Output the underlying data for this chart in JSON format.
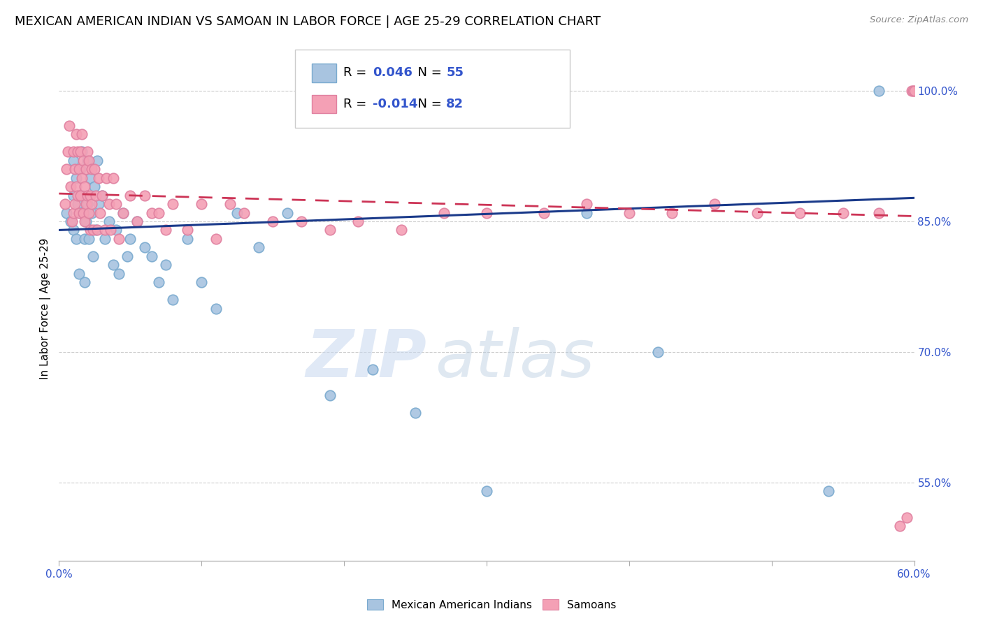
{
  "title": "MEXICAN AMERICAN INDIAN VS SAMOAN IN LABOR FORCE | AGE 25-29 CORRELATION CHART",
  "source": "Source: ZipAtlas.com",
  "ylabel": "In Labor Force | Age 25-29",
  "xlim": [
    0.0,
    0.6
  ],
  "ylim": [
    0.46,
    1.04
  ],
  "yticks": [
    0.55,
    0.7,
    0.85,
    1.0
  ],
  "ytick_labels": [
    "55.0%",
    "70.0%",
    "85.0%",
    "100.0%"
  ],
  "xticks": [
    0.0,
    0.1,
    0.2,
    0.3,
    0.4,
    0.5,
    0.6
  ],
  "xtick_labels": [
    "0.0%",
    "",
    "",
    "",
    "",
    "",
    "60.0%"
  ],
  "blue_R": 0.046,
  "blue_N": 55,
  "pink_R": -0.014,
  "pink_N": 82,
  "blue_color": "#a8c4e0",
  "pink_color": "#f4a0b5",
  "blue_edge_color": "#7aaacf",
  "pink_edge_color": "#e080a0",
  "blue_line_color": "#1a3a8a",
  "pink_line_color": "#cc3355",
  "legend_label_blue": "Mexican American Indians",
  "legend_label_pink": "Samoans",
  "title_fontsize": 13,
  "axis_color": "#3355cc",
  "watermark_zip": "ZIP",
  "watermark_atlas": "atlas",
  "blue_scatter_x": [
    0.005,
    0.008,
    0.01,
    0.01,
    0.01,
    0.012,
    0.012,
    0.013,
    0.014,
    0.015,
    0.015,
    0.016,
    0.017,
    0.018,
    0.018,
    0.019,
    0.02,
    0.02,
    0.021,
    0.022,
    0.023,
    0.024,
    0.025,
    0.026,
    0.027,
    0.028,
    0.03,
    0.032,
    0.035,
    0.038,
    0.04,
    0.042,
    0.045,
    0.048,
    0.05,
    0.055,
    0.06,
    0.065,
    0.07,
    0.075,
    0.08,
    0.09,
    0.1,
    0.11,
    0.125,
    0.14,
    0.16,
    0.19,
    0.22,
    0.25,
    0.3,
    0.37,
    0.42,
    0.54,
    0.575
  ],
  "blue_scatter_y": [
    0.86,
    0.85,
    0.84,
    0.88,
    0.92,
    0.9,
    0.83,
    0.87,
    0.79,
    0.91,
    0.86,
    0.93,
    0.88,
    0.83,
    0.78,
    0.85,
    0.92,
    0.87,
    0.83,
    0.9,
    0.86,
    0.81,
    0.89,
    0.84,
    0.92,
    0.87,
    0.88,
    0.83,
    0.85,
    0.8,
    0.84,
    0.79,
    0.86,
    0.81,
    0.83,
    0.85,
    0.82,
    0.81,
    0.78,
    0.8,
    0.76,
    0.83,
    0.78,
    0.75,
    0.86,
    0.82,
    0.86,
    0.65,
    0.68,
    0.63,
    0.54,
    0.86,
    0.7,
    0.54,
    1.0
  ],
  "pink_scatter_x": [
    0.004,
    0.005,
    0.006,
    0.007,
    0.008,
    0.009,
    0.01,
    0.01,
    0.011,
    0.011,
    0.012,
    0.012,
    0.013,
    0.013,
    0.014,
    0.014,
    0.015,
    0.015,
    0.016,
    0.016,
    0.017,
    0.017,
    0.018,
    0.018,
    0.019,
    0.019,
    0.02,
    0.02,
    0.021,
    0.021,
    0.022,
    0.022,
    0.023,
    0.023,
    0.024,
    0.025,
    0.026,
    0.027,
    0.028,
    0.029,
    0.03,
    0.032,
    0.033,
    0.035,
    0.036,
    0.038,
    0.04,
    0.042,
    0.045,
    0.05,
    0.055,
    0.06,
    0.065,
    0.07,
    0.075,
    0.08,
    0.09,
    0.1,
    0.11,
    0.12,
    0.13,
    0.15,
    0.17,
    0.19,
    0.21,
    0.24,
    0.27,
    0.3,
    0.34,
    0.37,
    0.4,
    0.43,
    0.46,
    0.49,
    0.52,
    0.55,
    0.575,
    0.59,
    0.595,
    0.598,
    0.599,
    0.6
  ],
  "pink_scatter_y": [
    0.87,
    0.91,
    0.93,
    0.96,
    0.89,
    0.85,
    0.93,
    0.86,
    0.91,
    0.87,
    0.95,
    0.89,
    0.93,
    0.88,
    0.91,
    0.86,
    0.93,
    0.88,
    0.95,
    0.9,
    0.86,
    0.92,
    0.89,
    0.85,
    0.91,
    0.87,
    0.93,
    0.88,
    0.86,
    0.92,
    0.88,
    0.84,
    0.91,
    0.87,
    0.84,
    0.91,
    0.88,
    0.84,
    0.9,
    0.86,
    0.88,
    0.84,
    0.9,
    0.87,
    0.84,
    0.9,
    0.87,
    0.83,
    0.86,
    0.88,
    0.85,
    0.88,
    0.86,
    0.86,
    0.84,
    0.87,
    0.84,
    0.87,
    0.83,
    0.87,
    0.86,
    0.85,
    0.85,
    0.84,
    0.85,
    0.84,
    0.86,
    0.86,
    0.86,
    0.87,
    0.86,
    0.86,
    0.87,
    0.86,
    0.86,
    0.86,
    0.86,
    0.5,
    0.51,
    1.0,
    1.0,
    1.0
  ]
}
